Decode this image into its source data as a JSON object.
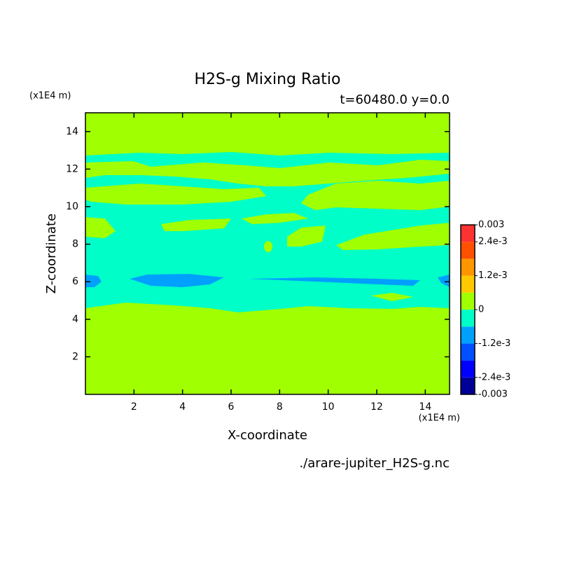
{
  "chart_data": {
    "type": "contour",
    "title": "H2S-g Mixing Ratio",
    "subtitle": "t=60480.0 y=0.0",
    "xlabel": "X-coordinate",
    "ylabel": "Z-coordinate",
    "xunit": "(x1E4 m)",
    "yunit": "(x1E4 m)",
    "footer": "./arare-jupiter_H2S-g.nc",
    "xlim": [
      0,
      15
    ],
    "xticks": [
      2,
      4,
      6,
      8,
      10,
      12,
      14
    ],
    "ylim": [
      0,
      15
    ],
    "yticks": [
      2,
      4,
      6,
      8,
      10,
      12,
      14
    ],
    "levels": [
      -0.003,
      -0.0024,
      -0.0018,
      -0.0012,
      -0.0006,
      0,
      0.0006,
      0.0012,
      0.0018,
      0.0024,
      0.003
    ],
    "colors": [
      "#000096",
      "#0000ff",
      "#0050ff",
      "#00a0ff",
      "#00ffc8",
      "#a0ff00",
      "#ffc800",
      "#ff9600",
      "#ff5000",
      "#ff3232"
    ],
    "colorbar_ticks": [
      0.003,
      {
        "value": 0.0024,
        "label": "2.4e-3"
      },
      {
        "value": 0.0012,
        "label": "1.2e-3"
      },
      0,
      {
        "value": -0.0012,
        "label": "-1.2e-3"
      },
      {
        "value": -0.0024,
        "label": "-2.4e-3"
      },
      -0.003
    ]
  }
}
